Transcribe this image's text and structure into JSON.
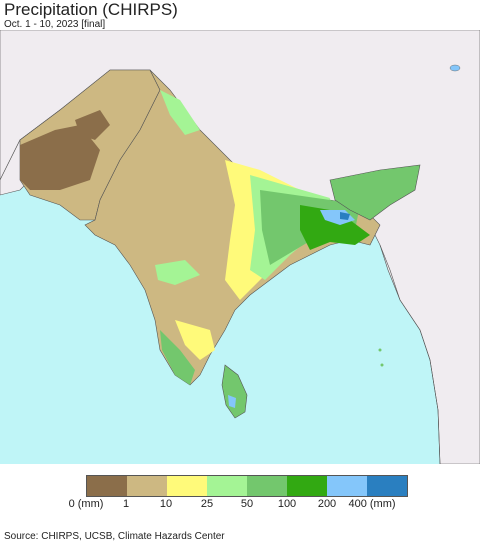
{
  "title": "Precipitation (CHIRPS)",
  "subtitle": "Oct. 1 - 10, 2023 [final]",
  "legend": {
    "unit_label": "(mm)",
    "swatches": [
      {
        "color": "#8b6e4a"
      },
      {
        "color": "#cdb882"
      },
      {
        "color": "#fffa7a"
      },
      {
        "color": "#a4f495"
      },
      {
        "color": "#73c76d"
      },
      {
        "color": "#32a912"
      },
      {
        "color": "#84c6fa"
      },
      {
        "color": "#2a7fc0"
      }
    ],
    "ticks": [
      "0 (mm)",
      "1",
      "10",
      "25",
      "50",
      "100",
      "200",
      "400 (mm)"
    ]
  },
  "source": "Source: CHIRPS, UCSB, Climate Hazards Center",
  "colors": {
    "ocean": "#bff5f7",
    "outside_land": "#f0ecf0",
    "border": "#444444"
  }
}
